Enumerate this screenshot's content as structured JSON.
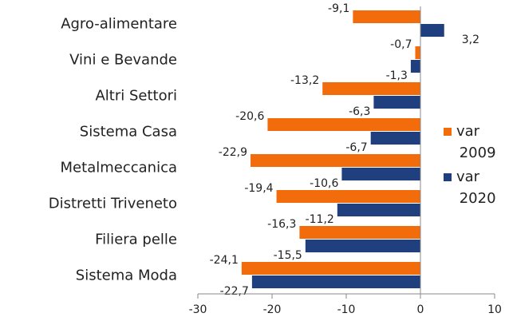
{
  "chart_data": {
    "type": "hbar",
    "categories": [
      "Agro-alimentare",
      "Vini e Bevande",
      "Altri Settori",
      "Sistema Casa",
      "Metalmeccanica",
      "Distretti Triveneto",
      "Filiera pelle",
      "Sistema Moda"
    ],
    "series": [
      {
        "name": "var 2009",
        "color": "#f36c0c",
        "values": [
          -9.1,
          -0.7,
          -13.2,
          -20.6,
          -22.9,
          -19.4,
          -16.3,
          -24.1
        ],
        "value_labels": [
          "-9,1",
          "-0,7",
          "-13,2",
          "-20,6",
          "-22,9",
          "-19,4",
          "-16,3",
          "-24,1"
        ]
      },
      {
        "name": "var 2020",
        "color": "#1f3f7f",
        "values": [
          3.2,
          -1.3,
          -6.3,
          -6.7,
          -10.6,
          -11.2,
          -15.5,
          -22.7
        ],
        "value_labels": [
          "3,2",
          "-1,3",
          "-6,3",
          "-6,7",
          "-10,6",
          "-11,2",
          "-15,5",
          "-22,7"
        ]
      }
    ],
    "xlim": [
      -30,
      10
    ],
    "xticks": [
      -30,
      -20,
      -10,
      0,
      10
    ],
    "legend": "right"
  }
}
